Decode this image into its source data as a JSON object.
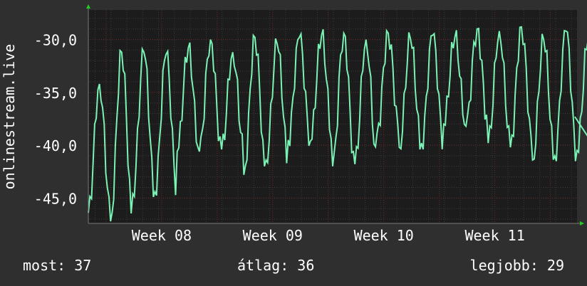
{
  "colors": {
    "background": "#2f2f2f",
    "plot_background": "#1c1c1c",
    "grid_major": "#6e2a2a",
    "grid_minor": "#3a3a3a",
    "line": "#7af2b4",
    "axis_arrow": "#22cc22",
    "text": "#ffffff"
  },
  "chart_data": {
    "type": "line",
    "ylabel": "onlinestream.live",
    "ylim": [
      -47.4,
      -27.2
    ],
    "yticks": [
      -30,
      -35,
      -40,
      -45
    ],
    "ytick_labels": [
      "-30,0",
      "-35,0",
      "-40,0",
      "-45,0"
    ],
    "xlim": [
      0,
      4.4
    ],
    "xticks": [
      {
        "x": 0.66,
        "label": "Week 08"
      },
      {
        "x": 1.66,
        "label": "Week 09"
      },
      {
        "x": 2.66,
        "label": "Week 10"
      },
      {
        "x": 3.66,
        "label": "Week 11"
      }
    ],
    "grid": true,
    "series": [
      {
        "x_start": 0,
        "x_step": 0.2,
        "peaks": [
          -34.2,
          -31.2,
          -31.2,
          -31.4,
          -30.8,
          -30.0,
          -31.2,
          -29.8,
          -30.4,
          -29.8,
          -29.6,
          -29.4,
          -30.0,
          -29.4,
          -29.9,
          -29.6,
          -29.8,
          -29.0,
          -29.2,
          -28.8,
          -30.0,
          -29.2,
          -30.0
        ],
        "troughs": [
          -46.4,
          -47.2,
          -44.6,
          -44.4,
          -40.6,
          -40.6,
          -40.4,
          -42.8,
          -41.4,
          -39.5,
          -39.6,
          -42.0,
          -41.8,
          -38.8,
          -40.2,
          -39.8,
          -38.0,
          -38.2,
          -39.8,
          -40.2,
          -41.4,
          -41.0,
          -40.5
        ],
        "end_value": -37.3
      }
    ]
  },
  "stats": {
    "now_label": "most:",
    "now_value": "37",
    "avg_label": "átlag:",
    "avg_value": "36",
    "best_label": "legjobb:",
    "best_value": "29"
  }
}
